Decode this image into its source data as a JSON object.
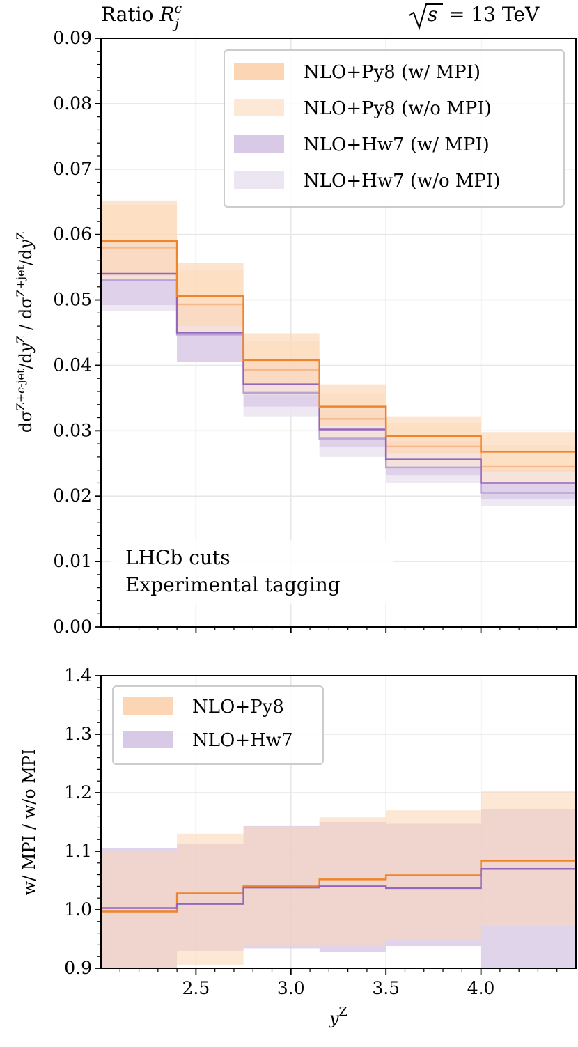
{
  "colors": {
    "py8": "#f0842a",
    "py8_band_mpi": "#fcd6b4",
    "py8_band_nompi": "#fde8d6",
    "hw7": "#9467bd",
    "hw7_band_mpi": "#d8c9e6",
    "hw7_band_nompi": "#ece6f2",
    "overlap": "#dcb8b8"
  },
  "chart_data": [
    {
      "type": "step-band",
      "title_left_prefix": "Ratio ",
      "title_left_symbol": "R",
      "title_left_super": "c",
      "title_left_sub": "j",
      "title_right": "= 13 TeV",
      "title_right_root": "s",
      "ylabel": "dσ^{Z+c-jet}/dy^{Z} / dσ^{Z+jet}/dy^{Z}",
      "ylim": [
        0.0,
        0.09
      ],
      "xlim": [
        2.0,
        4.5
      ],
      "yticks": [
        "0.00",
        "0.01",
        "0.02",
        "0.03",
        "0.04",
        "0.05",
        "0.06",
        "0.07",
        "0.08",
        "0.09"
      ],
      "bin_edges": [
        2.0,
        2.4,
        2.75,
        3.15,
        3.5,
        4.0,
        4.5
      ],
      "annotation": [
        "LHCb cuts",
        "Experimental tagging"
      ],
      "legend_position": "top-right",
      "series": [
        {
          "name": "NLO+Py8 (w/o MPI)",
          "central": [
            0.058,
            0.0493,
            0.0393,
            0.0318,
            0.0276,
            0.0245
          ],
          "low": [
            0.0532,
            0.0448,
            0.0355,
            0.029,
            0.0245,
            0.0219
          ],
          "high": [
            0.0645,
            0.0545,
            0.0437,
            0.0357,
            0.0312,
            0.0278
          ]
        },
        {
          "name": "NLO+Py8 (w/ MPI)",
          "central": [
            0.059,
            0.0506,
            0.0408,
            0.0337,
            0.0292,
            0.0268
          ],
          "low": [
            0.0537,
            0.046,
            0.037,
            0.0308,
            0.0265,
            0.0237
          ],
          "high": [
            0.0652,
            0.0557,
            0.0449,
            0.0371,
            0.0322,
            0.0298
          ]
        },
        {
          "name": "NLO+Hw7 (w/o MPI)",
          "central": [
            0.053,
            0.0447,
            0.0358,
            0.0288,
            0.0244,
            0.0205
          ],
          "low": [
            0.0483,
            0.0405,
            0.0322,
            0.026,
            0.022,
            0.0185
          ],
          "high": [
            0.0555,
            0.047,
            0.0375,
            0.0301,
            0.0258,
            0.0218
          ]
        },
        {
          "name": "NLO+Hw7 (w/ MPI)",
          "central": [
            0.054,
            0.045,
            0.0371,
            0.0302,
            0.0256,
            0.022
          ],
          "low": [
            0.0492,
            0.0405,
            0.0337,
            0.0275,
            0.0232,
            0.0196
          ],
          "high": [
            0.059,
            0.0495,
            0.0406,
            0.0332,
            0.0284,
            0.0242
          ]
        }
      ],
      "legend": [
        {
          "label": "NLO+Py8 (w/ MPI)",
          "key": "py8_band_mpi"
        },
        {
          "label": "NLO+Py8 (w/o MPI)",
          "key": "py8_band_nompi"
        },
        {
          "label": "NLO+Hw7 (w/ MPI)",
          "key": "hw7_band_mpi"
        },
        {
          "label": "NLO+Hw7 (w/o MPI)",
          "key": "hw7_band_nompi"
        }
      ]
    },
    {
      "type": "step-band",
      "ylabel": "w/ MPI / w/o MPI",
      "xlabel": "y^Z",
      "ylim": [
        0.9,
        1.4
      ],
      "xlim": [
        2.0,
        4.5
      ],
      "yticks": [
        "0.9",
        "1.0",
        "1.1",
        "1.2",
        "1.3",
        "1.4"
      ],
      "xticks": [
        "2.5",
        "3.0",
        "3.5",
        "4.0"
      ],
      "bin_edges": [
        2.0,
        2.4,
        2.75,
        3.15,
        3.5,
        4.0,
        4.5
      ],
      "legend_position": "top-left",
      "series": [
        {
          "name": "NLO+Py8",
          "central": [
            0.997,
            1.028,
            1.04,
            1.052,
            1.059,
            1.084
          ],
          "low": [
            0.895,
            0.905,
            0.938,
            0.94,
            0.95,
            0.972
          ],
          "high": [
            1.1,
            1.13,
            1.142,
            1.158,
            1.17,
            1.203
          ]
        },
        {
          "name": "NLO+Hw7",
          "central": [
            1.003,
            1.01,
            1.038,
            1.04,
            1.037,
            1.07
          ],
          "low": [
            0.895,
            0.93,
            0.934,
            0.928,
            0.938,
            0.9
          ],
          "high": [
            1.105,
            1.112,
            1.143,
            1.15,
            1.147,
            1.172
          ]
        }
      ],
      "legend": [
        {
          "label": "NLO+Py8",
          "key": "py8_band_mpi"
        },
        {
          "label": "NLO+Hw7",
          "key": "hw7_band_mpi"
        }
      ]
    }
  ]
}
